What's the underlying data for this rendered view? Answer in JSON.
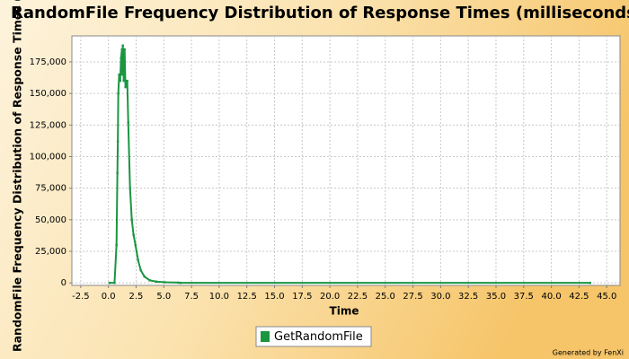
{
  "chart_data": {
    "type": "line",
    "title": "RandomFile Frequency Distribution of Response Times (milliseconds)",
    "x_label": "Time",
    "y_label": "RandomFile Frequency Distribution of Response Times (milliseconds)",
    "credit": "Generated by FenXi",
    "series": [
      {
        "name": "GetRandomFile",
        "color": "#1a9641",
        "x": [
          0.1,
          0.55,
          0.73,
          0.81,
          0.85,
          0.89,
          0.97,
          1.06,
          1.14,
          1.22,
          1.26,
          1.3,
          1.38,
          1.46,
          1.54,
          1.7,
          1.79,
          1.95,
          2.11,
          2.27,
          2.44,
          2.68,
          2.92,
          3.25,
          3.73,
          4.3,
          5.1,
          6.3,
          6.5,
          43.5
        ],
        "values": [
          0,
          0,
          30000,
          87000,
          112000,
          150000,
          165000,
          160000,
          178000,
          185000,
          165000,
          188000,
          160000,
          185000,
          155000,
          160000,
          127000,
          75000,
          50000,
          38000,
          30000,
          18000,
          10000,
          5000,
          2000,
          1000,
          500,
          200,
          0,
          0
        ]
      }
    ],
    "xlim": [
      -3.3,
      46.2
    ],
    "xticks": [
      -2.5,
      {
        "value": 0,
        "label": "0.0"
      },
      2.5,
      {
        "value": 5,
        "label": "5.0"
      },
      7.5,
      {
        "value": 10,
        "label": "10.0"
      },
      12.5,
      {
        "value": 15,
        "label": "15.0"
      },
      17.5,
      {
        "value": 20,
        "label": "20.0"
      },
      22.5,
      {
        "value": 25,
        "label": "25.0"
      },
      27.5,
      {
        "value": 30,
        "label": "30.0"
      },
      32.5,
      {
        "value": 35,
        "label": "35.0"
      },
      37.5,
      {
        "value": 40,
        "label": "40.0"
      },
      42.5,
      {
        "value": 45,
        "label": "45.0"
      }
    ],
    "ylim": [
      -2000,
      195600
    ],
    "yticks": [
      0,
      {
        "value": 25000,
        "label": "25,000"
      },
      {
        "value": 50000,
        "label": "50,000"
      },
      {
        "value": 75000,
        "label": "75,000"
      },
      {
        "value": 100000,
        "label": "100,000"
      },
      {
        "value": 125000,
        "label": "125,000"
      },
      {
        "value": 150000,
        "label": "150,000"
      },
      {
        "value": 175000,
        "label": "175,000"
      }
    ],
    "grid": true
  }
}
